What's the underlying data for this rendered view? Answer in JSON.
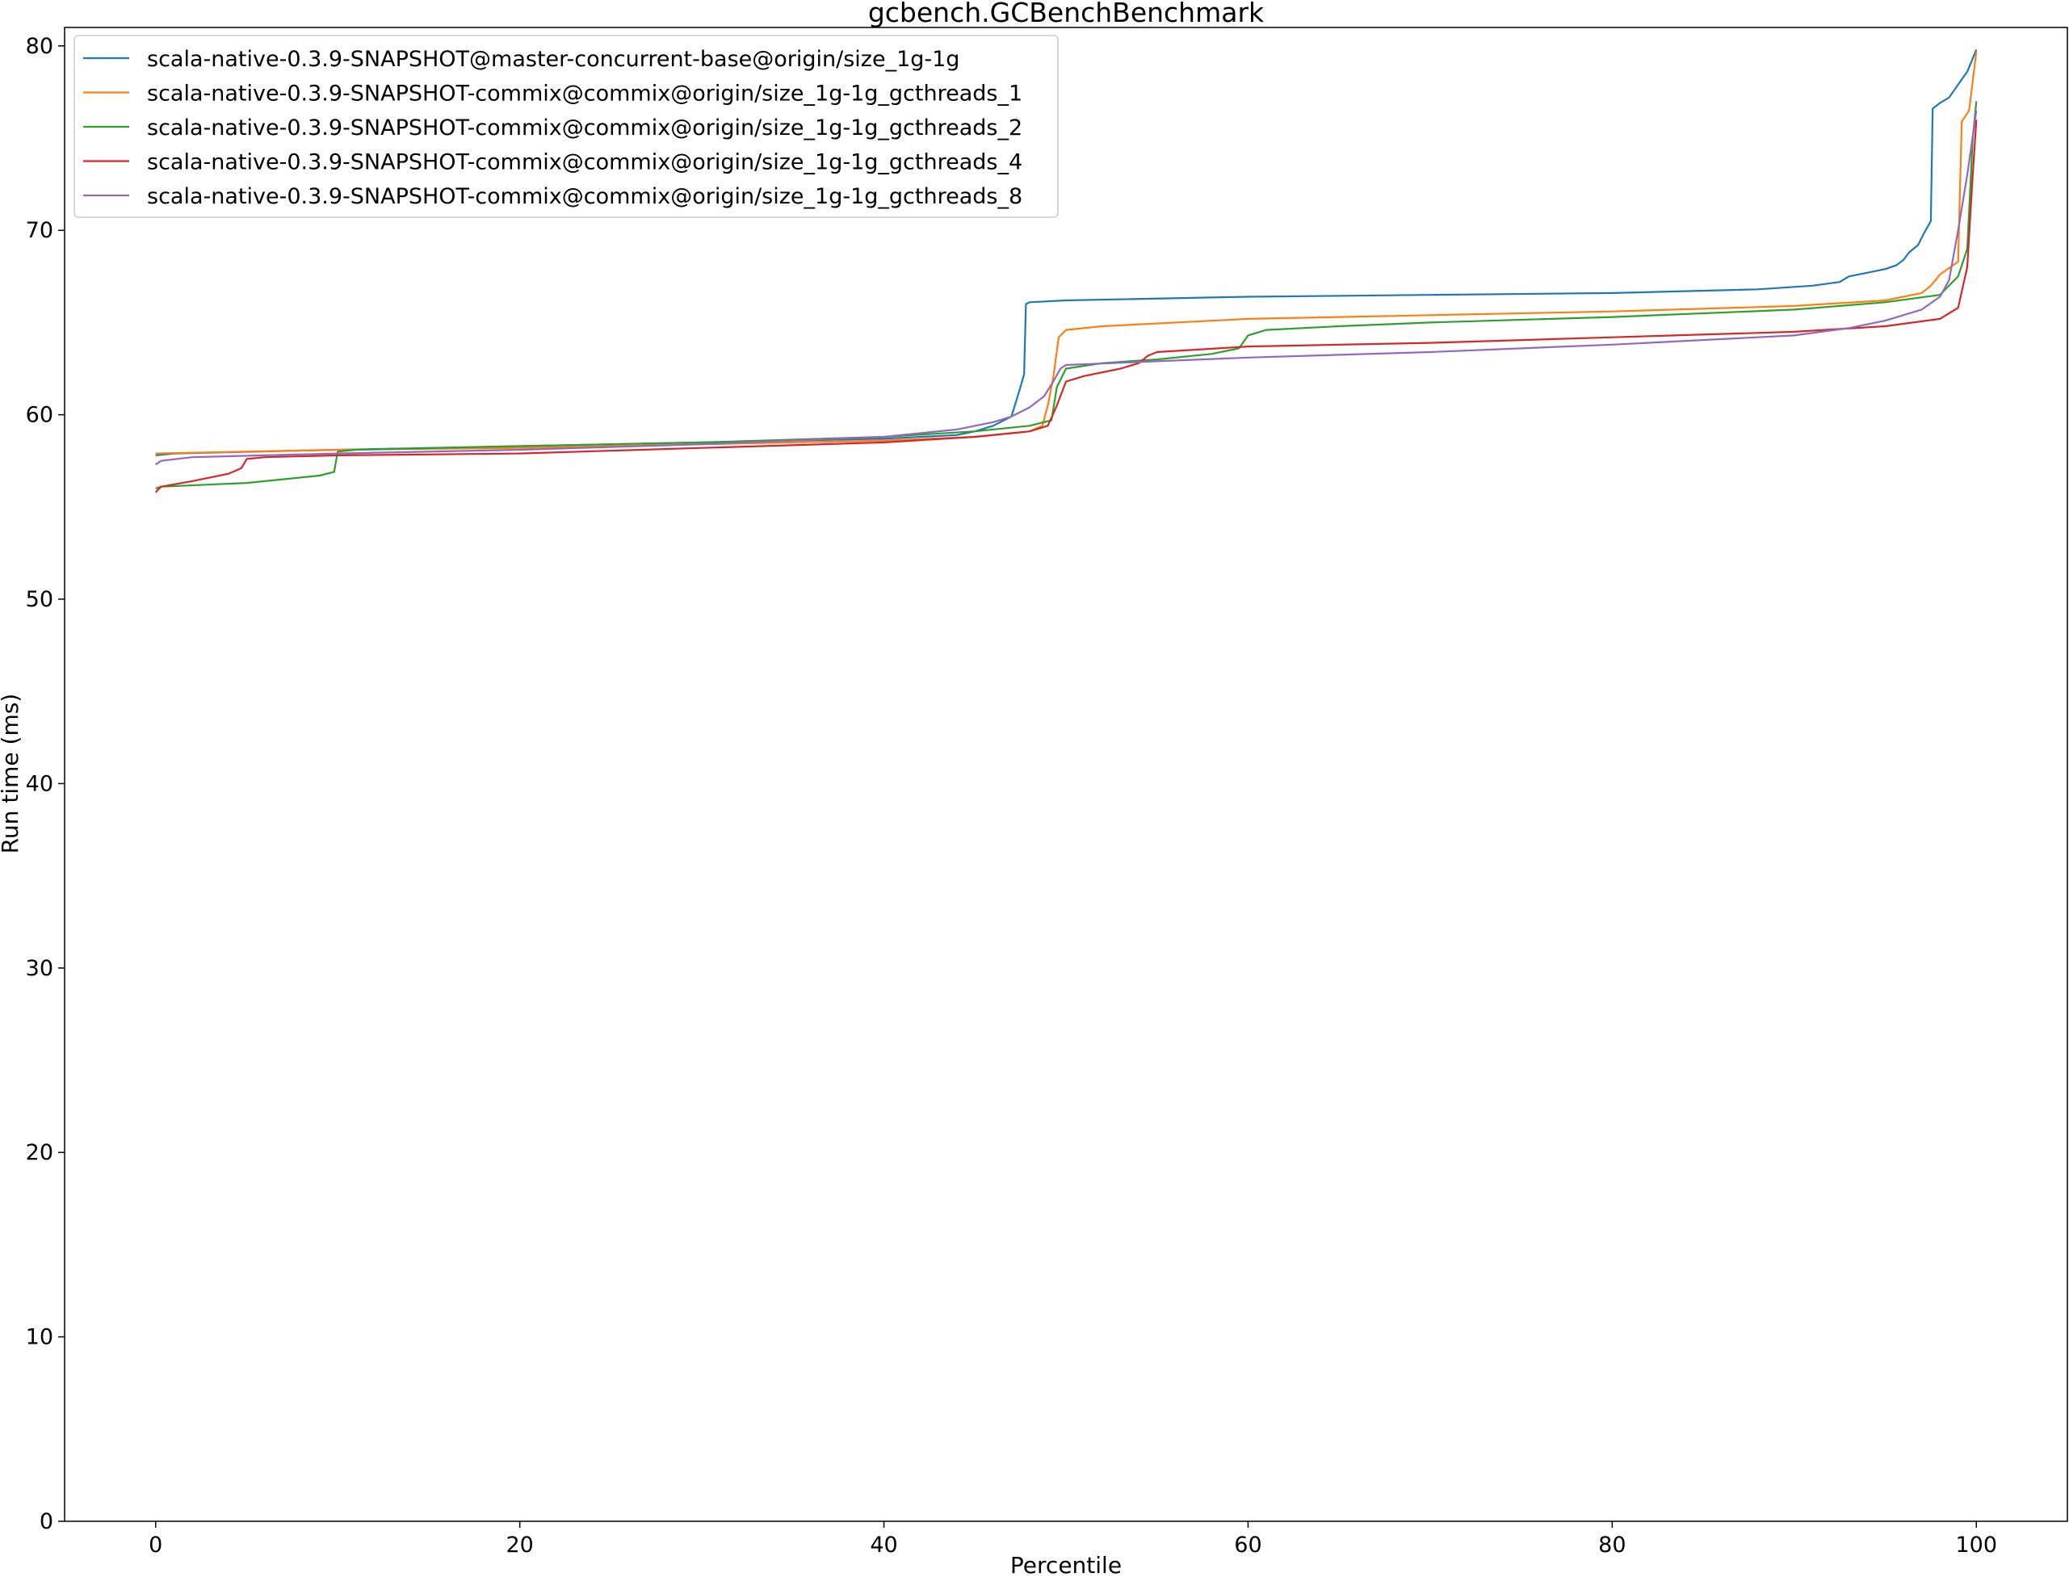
{
  "chart_data": {
    "type": "line",
    "title": "gcbench.GCBenchBenchmark",
    "xlabel": "Percentile",
    "ylabel": "Run time (ms)",
    "xlim": [
      -5,
      105
    ],
    "ylim": [
      0,
      81
    ],
    "xticks": [
      0,
      20,
      40,
      60,
      80,
      100
    ],
    "yticks": [
      0,
      10,
      20,
      30,
      40,
      50,
      60,
      70,
      80
    ],
    "grid": false,
    "legend_position": "upper-left",
    "series": [
      {
        "name": "scala-native-0.3.9-SNAPSHOT@master-concurrent-base@origin/size_1g-1g",
        "color": "#1f77b4",
        "points": [
          [
            0,
            57.8
          ],
          [
            1,
            57.9
          ],
          [
            10,
            58.1
          ],
          [
            20,
            58.3
          ],
          [
            30,
            58.5
          ],
          [
            40,
            58.7
          ],
          [
            44,
            58.9
          ],
          [
            45,
            59.1
          ],
          [
            46,
            59.4
          ],
          [
            47,
            59.9
          ],
          [
            47.5,
            61.5
          ],
          [
            47.7,
            62.2
          ],
          [
            47.8,
            66.0
          ],
          [
            48,
            66.1
          ],
          [
            50,
            66.2
          ],
          [
            60,
            66.4
          ],
          [
            70,
            66.5
          ],
          [
            80,
            66.6
          ],
          [
            88,
            66.8
          ],
          [
            91,
            67.0
          ],
          [
            92.5,
            67.2
          ],
          [
            93,
            67.5
          ],
          [
            94,
            67.7
          ],
          [
            95,
            67.9
          ],
          [
            95.6,
            68.1
          ],
          [
            96,
            68.4
          ],
          [
            96.3,
            68.8
          ],
          [
            96.8,
            69.2
          ],
          [
            97.1,
            69.8
          ],
          [
            97.5,
            70.5
          ],
          [
            97.6,
            76.6
          ],
          [
            98,
            76.9
          ],
          [
            98.5,
            77.2
          ],
          [
            99,
            77.9
          ],
          [
            99.5,
            78.6
          ],
          [
            100,
            79.8
          ]
        ]
      },
      {
        "name": "scala-native-0.3.9-SNAPSHOT-commix@commix@origin/size_1g-1g_gcthreads_1",
        "color": "#ff7f0e",
        "points": [
          [
            0,
            57.9
          ],
          [
            10,
            58.1
          ],
          [
            20,
            58.2
          ],
          [
            30,
            58.4
          ],
          [
            40,
            58.6
          ],
          [
            45,
            58.8
          ],
          [
            48,
            59.1
          ],
          [
            48.7,
            59.4
          ],
          [
            49.0,
            60.5
          ],
          [
            49.3,
            62.0
          ],
          [
            49.6,
            64.2
          ],
          [
            50,
            64.6
          ],
          [
            52,
            64.8
          ],
          [
            60,
            65.2
          ],
          [
            70,
            65.4
          ],
          [
            80,
            65.6
          ],
          [
            90,
            65.9
          ],
          [
            95,
            66.2
          ],
          [
            97,
            66.6
          ],
          [
            97.5,
            67.0
          ],
          [
            98,
            67.6
          ],
          [
            99,
            68.3
          ],
          [
            99.2,
            75.9
          ],
          [
            99.6,
            76.5
          ],
          [
            100,
            79.7
          ]
        ]
      },
      {
        "name": "scala-native-0.3.9-SNAPSHOT-commix@commix@origin/size_1g-1g_gcthreads_2",
        "color": "#2ca02c",
        "points": [
          [
            0,
            56.0
          ],
          [
            0.3,
            56.1
          ],
          [
            5,
            56.3
          ],
          [
            9,
            56.7
          ],
          [
            9.8,
            56.9
          ],
          [
            10,
            58.0
          ],
          [
            11,
            58.1
          ],
          [
            20,
            58.3
          ],
          [
            30,
            58.5
          ],
          [
            40,
            58.8
          ],
          [
            45,
            59.1
          ],
          [
            48,
            59.4
          ],
          [
            49.2,
            59.7
          ],
          [
            49.5,
            61.5
          ],
          [
            50,
            62.5
          ],
          [
            52,
            62.8
          ],
          [
            55,
            63.0
          ],
          [
            58,
            63.3
          ],
          [
            59.5,
            63.6
          ],
          [
            60,
            64.3
          ],
          [
            61,
            64.6
          ],
          [
            65,
            64.8
          ],
          [
            70,
            65.0
          ],
          [
            80,
            65.3
          ],
          [
            90,
            65.7
          ],
          [
            95,
            66.1
          ],
          [
            98,
            66.5
          ],
          [
            99,
            67.5
          ],
          [
            99.5,
            69.0
          ],
          [
            99.8,
            75.0
          ],
          [
            100,
            77.0
          ]
        ]
      },
      {
        "name": "scala-native-0.3.9-SNAPSHOT-commix@commix@origin/size_1g-1g_gcthreads_4",
        "color": "#d62728",
        "points": [
          [
            0,
            55.8
          ],
          [
            0.3,
            56.1
          ],
          [
            2,
            56.4
          ],
          [
            4,
            56.8
          ],
          [
            4.7,
            57.1
          ],
          [
            5,
            57.6
          ],
          [
            6,
            57.7
          ],
          [
            10,
            57.8
          ],
          [
            20,
            57.9
          ],
          [
            30,
            58.2
          ],
          [
            40,
            58.5
          ],
          [
            45,
            58.8
          ],
          [
            48,
            59.1
          ],
          [
            49,
            59.4
          ],
          [
            49.5,
            60.5
          ],
          [
            50,
            61.8
          ],
          [
            51,
            62.1
          ],
          [
            53,
            62.5
          ],
          [
            54,
            62.8
          ],
          [
            54.5,
            63.2
          ],
          [
            55,
            63.4
          ],
          [
            60,
            63.7
          ],
          [
            70,
            63.9
          ],
          [
            80,
            64.2
          ],
          [
            90,
            64.5
          ],
          [
            95,
            64.8
          ],
          [
            98,
            65.2
          ],
          [
            99,
            65.8
          ],
          [
            99.5,
            68.0
          ],
          [
            99.8,
            73.0
          ],
          [
            100,
            76.0
          ]
        ]
      },
      {
        "name": "scala-native-0.3.9-SNAPSHOT-commix@commix@origin/size_1g-1g_gcthreads_8",
        "color": "#9467bd",
        "points": [
          [
            0,
            57.3
          ],
          [
            0.3,
            57.5
          ],
          [
            2,
            57.7
          ],
          [
            10,
            57.9
          ],
          [
            20,
            58.1
          ],
          [
            30,
            58.4
          ],
          [
            40,
            58.8
          ],
          [
            44,
            59.2
          ],
          [
            46,
            59.6
          ],
          [
            47,
            59.9
          ],
          [
            48,
            60.4
          ],
          [
            48.8,
            61.0
          ],
          [
            49.3,
            61.8
          ],
          [
            49.7,
            62.5
          ],
          [
            50,
            62.7
          ],
          [
            55,
            62.9
          ],
          [
            60,
            63.1
          ],
          [
            70,
            63.4
          ],
          [
            80,
            63.8
          ],
          [
            90,
            64.3
          ],
          [
            93,
            64.7
          ],
          [
            95,
            65.1
          ],
          [
            97,
            65.7
          ],
          [
            98,
            66.4
          ],
          [
            98.5,
            67.3
          ],
          [
            99,
            70.0
          ],
          [
            99.5,
            73.0
          ],
          [
            100,
            76.5
          ]
        ]
      }
    ]
  }
}
